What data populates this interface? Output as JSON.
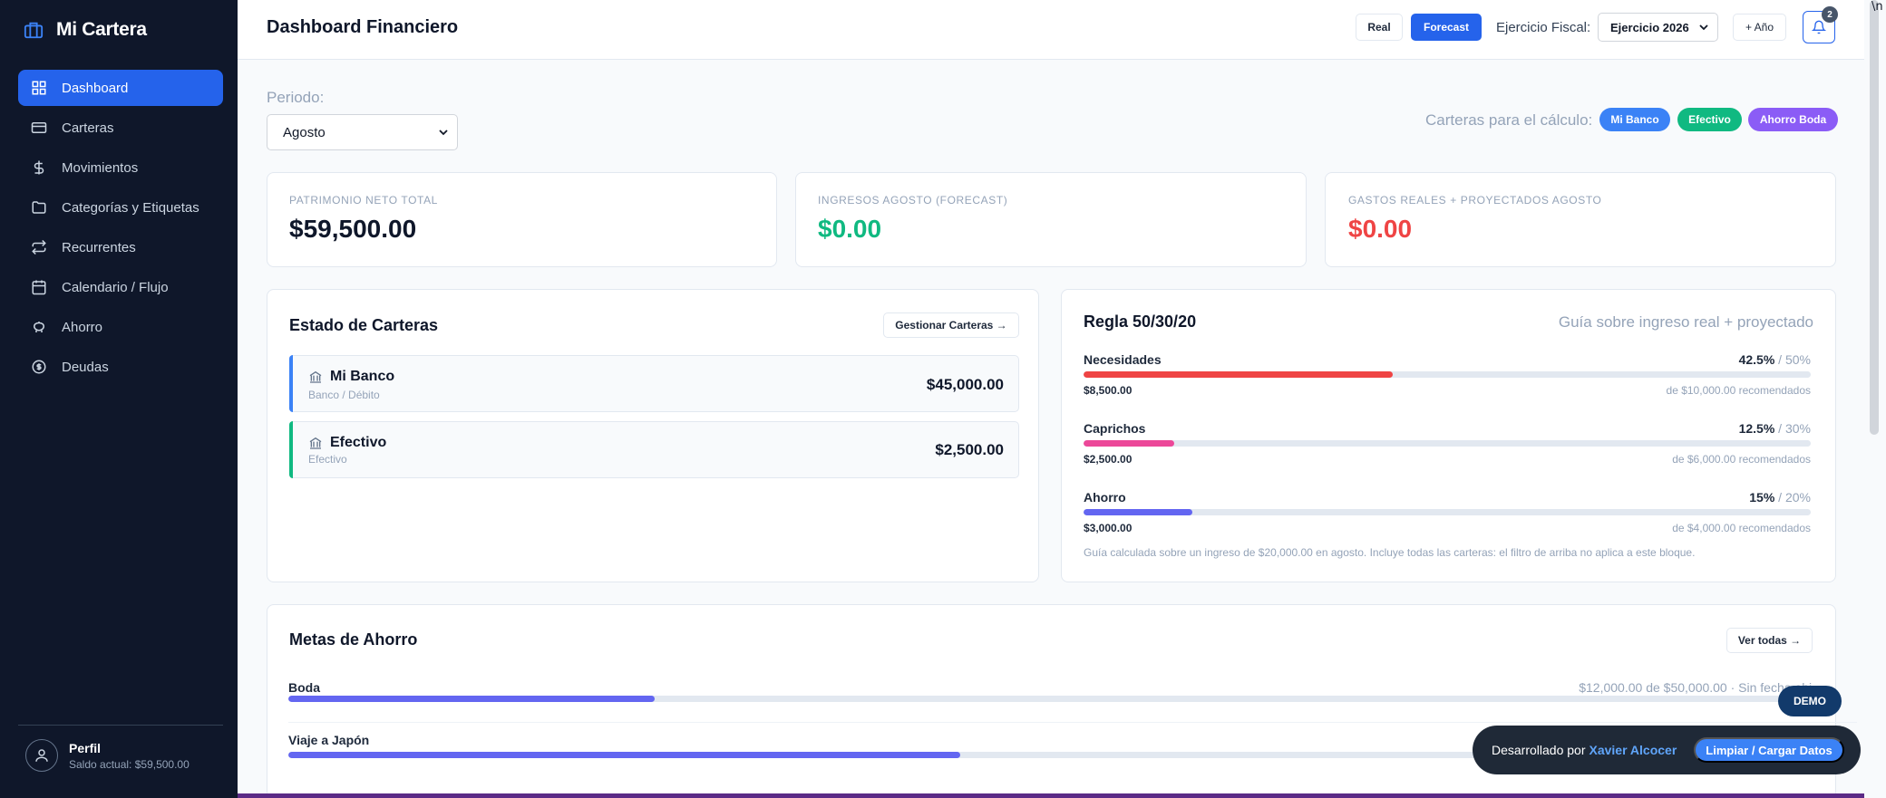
{
  "app": {
    "name": "Mi Cartera"
  },
  "sidebar": {
    "items": [
      {
        "label": "Dashboard",
        "icon": "grid-icon",
        "active": true
      },
      {
        "label": "Carteras",
        "icon": "card-icon"
      },
      {
        "label": "Movimientos",
        "icon": "dollar-icon"
      },
      {
        "label": "Categorías y Etiquetas",
        "icon": "folder-icon"
      },
      {
        "label": "Recurrentes",
        "icon": "repeat-icon"
      },
      {
        "label": "Calendario / Flujo",
        "icon": "calendar-icon"
      },
      {
        "label": "Ahorro",
        "icon": "piggy-bank-icon"
      },
      {
        "label": "Deudas",
        "icon": "coin-icon"
      }
    ],
    "profile": {
      "name": "Perfil",
      "balance": "Saldo actual: $59,500.00"
    }
  },
  "header": {
    "title": "Dashboard Financiero",
    "mode_real": "Real",
    "mode_forecast": "Forecast",
    "fiscal_label": "Ejercicio Fiscal:",
    "fiscal_value": "Ejercicio 2026",
    "add_year": "+ Año",
    "notifications_count": "2"
  },
  "filters": {
    "period_label": "Periodo:",
    "period_value": "Agosto",
    "wallets_label": "Carteras para el cálculo:",
    "wallet_chips": [
      {
        "label": "Mi Banco",
        "color": "#3b82f6"
      },
      {
        "label": "Efectivo",
        "color": "#10b981"
      },
      {
        "label": "Ahorro Boda",
        "color": "#8b5cf6"
      }
    ]
  },
  "kpis": [
    {
      "label": "PATRIMONIO NETO TOTAL",
      "value": "$59,500.00",
      "color": "#0f172a"
    },
    {
      "label": "INGRESOS AGOSTO (FORECAST)",
      "value": "$0.00",
      "color": "#10b981"
    },
    {
      "label": "GASTOS REALES + PROYECTADOS AGOSTO",
      "value": "$0.00",
      "color": "#ef4444"
    }
  ],
  "wallets_card": {
    "title": "Estado de Carteras",
    "manage_button": "Gestionar Carteras →",
    "wallets": [
      {
        "name": "Mi Banco",
        "type": "Banco / Débito",
        "amount": "$45,000.00",
        "color": "#3b82f6"
      },
      {
        "name": "Efectivo",
        "type": "Efectivo",
        "amount": "$2,500.00",
        "color": "#10b981"
      }
    ]
  },
  "rule_card": {
    "title": "Regla 50/30/20",
    "subtitle": "Guía sobre ingreso real + proyectado",
    "rows": [
      {
        "name": "Necesidades",
        "pct": "42.5%",
        "target": " / 50%",
        "fill": 0.425,
        "amount": "$8,500.00",
        "recommended": "de $10,000.00 recomendados",
        "color": "#ef4444"
      },
      {
        "name": "Caprichos",
        "pct": "12.5%",
        "target": " / 30%",
        "fill": 0.125,
        "amount": "$2,500.00",
        "recommended": "de $6,000.00 recomendados",
        "color": "#ec4899"
      },
      {
        "name": "Ahorro",
        "pct": "15%",
        "target": " / 20%",
        "fill": 0.15,
        "amount": "$3,000.00",
        "recommended": "de $4,000.00 recomendados",
        "color": "#6366f1"
      }
    ],
    "note": "Guía calculada sobre un ingreso de $20,000.00 en agosto. Incluye todas las carteras: el filtro de arriba no aplica a este bloque."
  },
  "goals_card": {
    "title": "Metas de Ahorro",
    "see_all": "Ver todas →",
    "goals": [
      {
        "name": "Boda",
        "info": "$12,000.00 de $50,000.00 · Sin fecha obj.",
        "progress": 0.24,
        "color": "#6366f1"
      },
      {
        "name": "Viaje a Japón",
        "info": "",
        "progress": 0.44,
        "color": "#6366f1"
      }
    ]
  },
  "demo_badge": "DEMO",
  "toast": {
    "text": "Desarrollado por",
    "author": "Xavier Alcocer",
    "button": "Limpiar / Cargar Datos"
  }
}
